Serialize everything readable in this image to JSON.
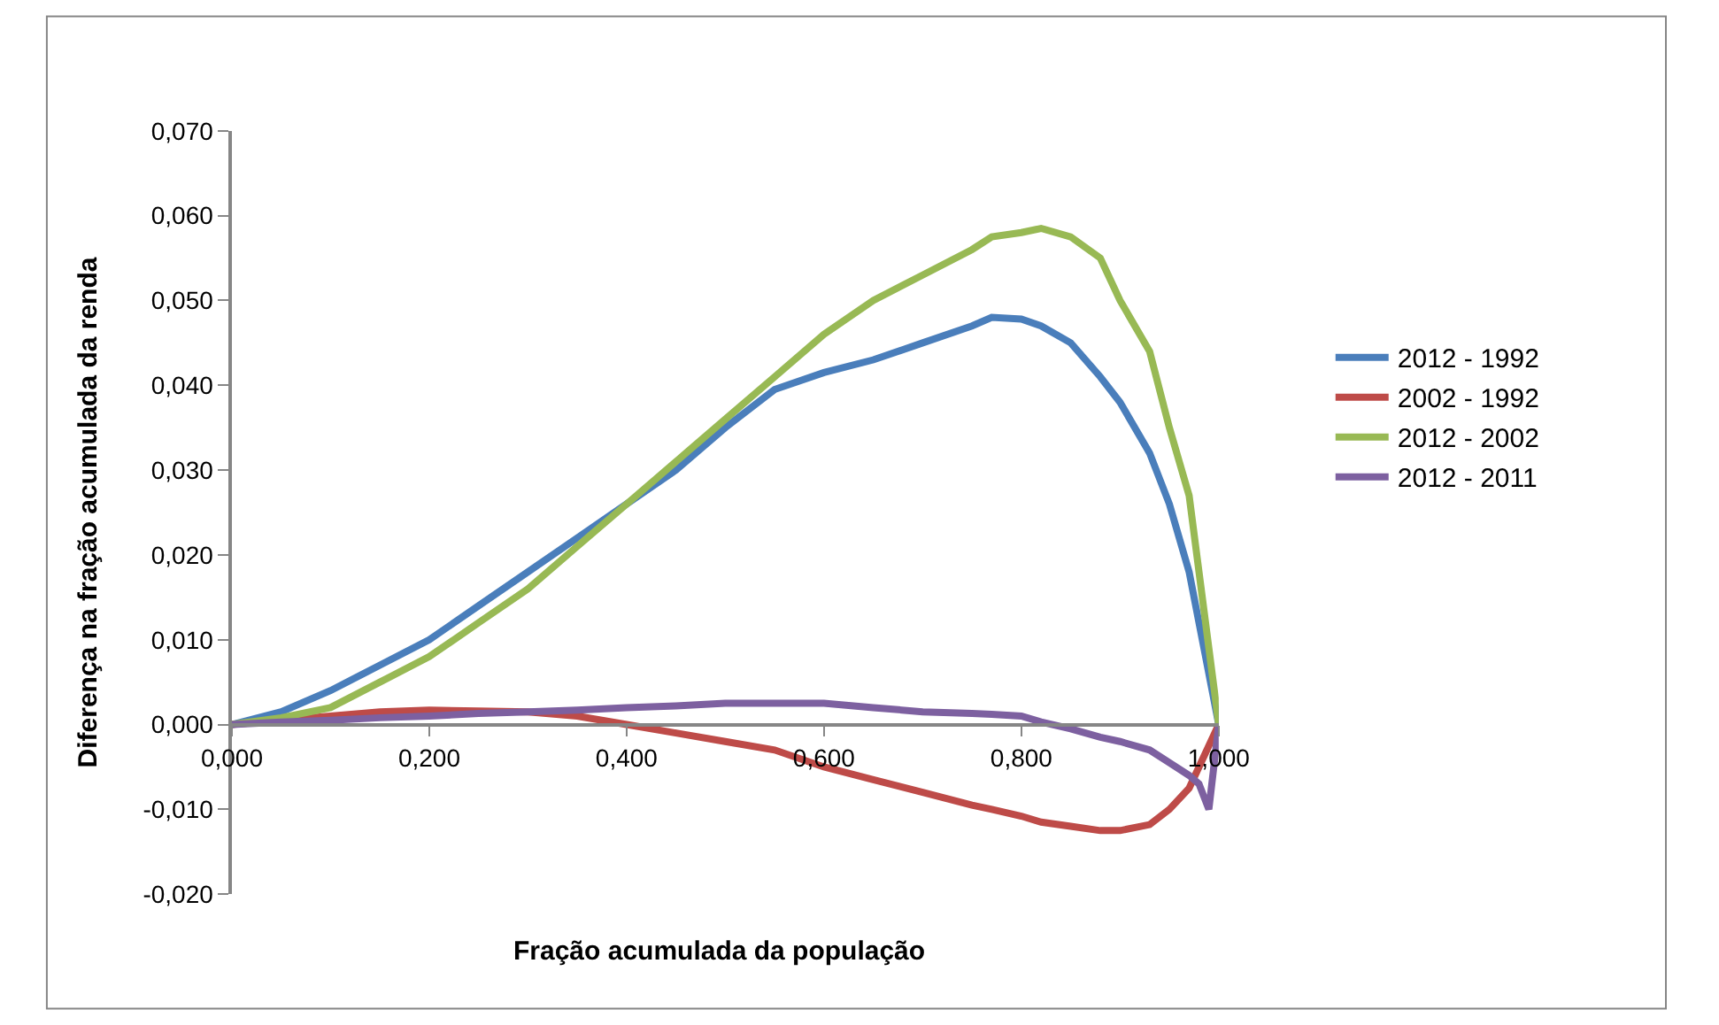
{
  "chart_data": {
    "type": "line",
    "xlabel": "Fração acumulada da população",
    "ylabel": "Diferença na fração acumulada da renda",
    "x": [
      0,
      0.05,
      0.1,
      0.15,
      0.2,
      0.25,
      0.3,
      0.35,
      0.4,
      0.45,
      0.5,
      0.55,
      0.6,
      0.65,
      0.7,
      0.75,
      0.77,
      0.8,
      0.82,
      0.85,
      0.88,
      0.9,
      0.93,
      0.95,
      0.97,
      0.98,
      0.99,
      1.0
    ],
    "series": [
      {
        "name": "2012 - 1992",
        "color": "#4a7ebb",
        "values": [
          0,
          0.0015,
          0.004,
          0.007,
          0.01,
          0.014,
          0.018,
          0.022,
          0.026,
          0.03,
          0.035,
          0.0395,
          0.0415,
          0.043,
          0.045,
          0.047,
          0.048,
          0.0478,
          0.047,
          0.045,
          0.041,
          0.038,
          0.032,
          0.026,
          0.018,
          0.012,
          0.006,
          0
        ]
      },
      {
        "name": "2002 - 1992",
        "color": "#be4b48",
        "values": [
          0,
          0.0005,
          0.001,
          0.0015,
          0.0017,
          0.0016,
          0.0015,
          0.001,
          0.0,
          -0.001,
          -0.002,
          -0.003,
          -0.005,
          -0.0065,
          -0.008,
          -0.0095,
          -0.01,
          -0.0108,
          -0.0115,
          -0.012,
          -0.0125,
          -0.0125,
          -0.0118,
          -0.01,
          -0.0075,
          -0.005,
          -0.0025,
          0
        ]
      },
      {
        "name": "2012 - 2002",
        "color": "#98b954",
        "values": [
          0,
          0.0008,
          0.002,
          0.005,
          0.008,
          0.012,
          0.016,
          0.021,
          0.026,
          0.031,
          0.036,
          0.041,
          0.046,
          0.05,
          0.053,
          0.056,
          0.0575,
          0.058,
          0.0585,
          0.0575,
          0.055,
          0.05,
          0.044,
          0.035,
          0.027,
          0.018,
          0.009,
          0
        ]
      },
      {
        "name": "2012 - 2011",
        "color": "#7d60a0",
        "values": [
          0,
          0.0003,
          0.0005,
          0.0008,
          0.001,
          0.0013,
          0.0015,
          0.0017,
          0.002,
          0.0022,
          0.0025,
          0.0025,
          0.0025,
          0.002,
          0.0015,
          0.0013,
          0.0012,
          0.001,
          0.0003,
          -0.0005,
          -0.0015,
          -0.002,
          -0.003,
          -0.0045,
          -0.006,
          -0.007,
          -0.01,
          0
        ]
      }
    ],
    "xlim": [
      0,
      1.0
    ],
    "xticks": [
      {
        "value": 0,
        "label": "0,000"
      },
      {
        "value": 0.2,
        "label": "0,200"
      },
      {
        "value": 0.4,
        "label": "0,400"
      },
      {
        "value": 0.6,
        "label": "0,600"
      },
      {
        "value": 0.8,
        "label": "0,800"
      },
      {
        "value": 1.0,
        "label": "1,000"
      }
    ],
    "ylim": [
      -0.02,
      0.07
    ],
    "yticks": [
      {
        "value": -0.02,
        "label": "-0,020"
      },
      {
        "value": -0.01,
        "label": "-0,010"
      },
      {
        "value": 0,
        "label": "0,000"
      },
      {
        "value": 0.01,
        "label": "0,010"
      },
      {
        "value": 0.02,
        "label": "0,020"
      },
      {
        "value": 0.03,
        "label": "0,030"
      },
      {
        "value": 0.04,
        "label": "0,040"
      },
      {
        "value": 0.05,
        "label": "0,050"
      },
      {
        "value": 0.06,
        "label": "0,060"
      },
      {
        "value": 0.07,
        "label": "0,070"
      }
    ],
    "legend": "right",
    "marker": "none",
    "line_style": "solid"
  }
}
